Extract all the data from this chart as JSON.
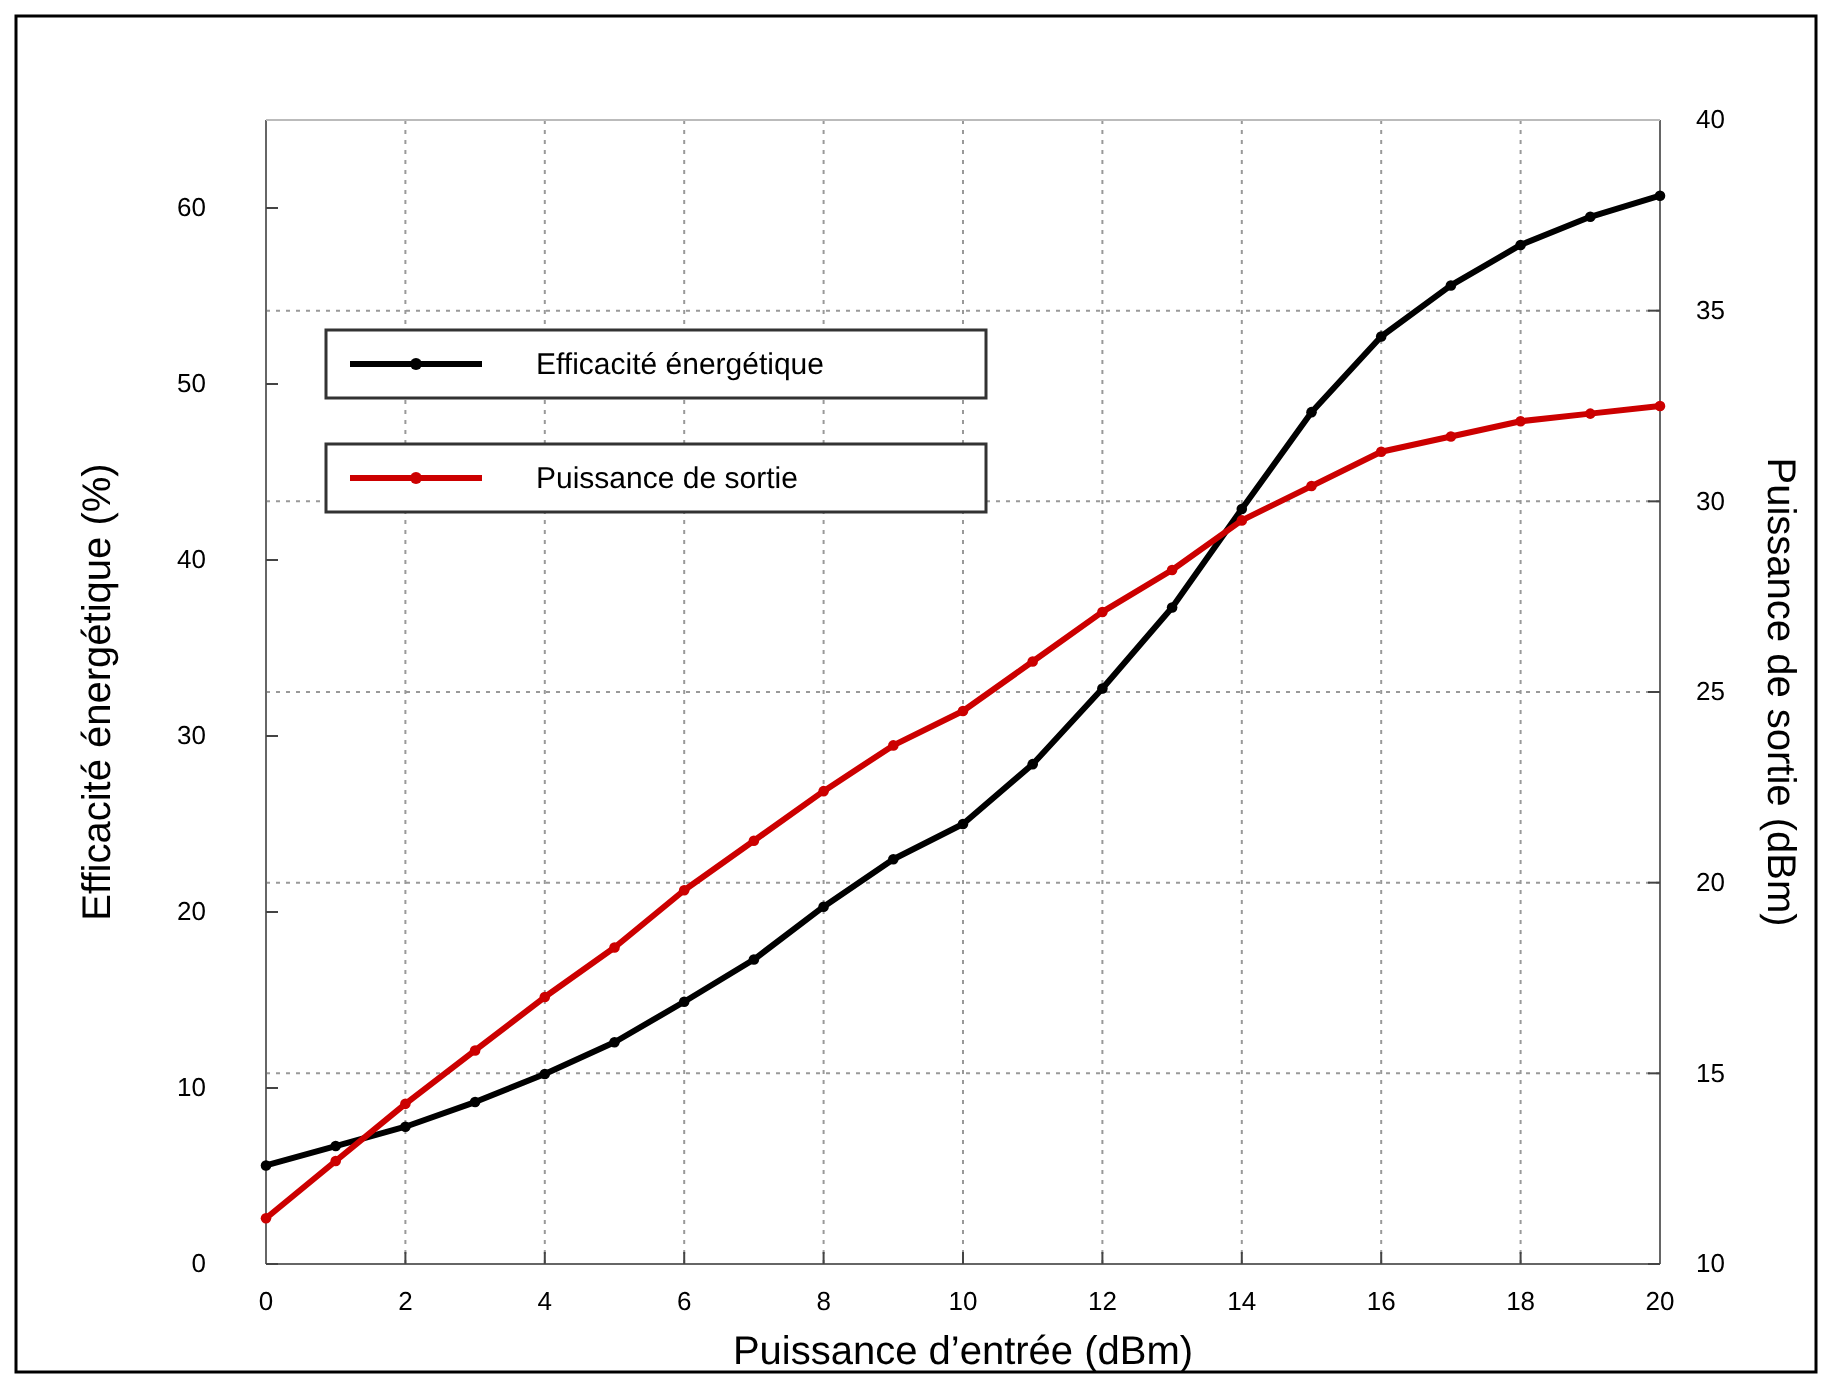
{
  "chart_data": {
    "type": "line",
    "xlabel": "Puissance d’entrée (dBm)",
    "ylabel": "Efficacité énergétique (%)",
    "y2label": "Puissance de sortie (dBm)",
    "x": [
      0,
      1,
      2,
      3,
      4,
      5,
      6,
      7,
      8,
      9,
      10,
      11,
      12,
      13,
      14,
      15,
      16,
      17,
      18,
      19,
      20
    ],
    "series": [
      {
        "name": "Efficacité énergétique",
        "color": "#000000",
        "values": [
          5.6,
          6.7,
          7.8,
          9.2,
          10.8,
          12.6,
          14.9,
          17.3,
          20.3,
          23.0,
          25.0,
          28.4,
          32.7,
          37.3,
          42.9,
          48.4,
          52.7,
          55.6,
          57.9,
          59.5,
          60.7
        ]
      },
      {
        "name": "Puissance de sortie",
        "color": "#cc0000",
        "axis": "y2",
        "values": [
          11.2,
          12.7,
          14.2,
          15.6,
          17.0,
          18.3,
          19.8,
          21.1,
          22.4,
          23.6,
          24.5,
          25.8,
          27.1,
          28.2,
          29.5,
          30.4,
          31.3,
          31.7,
          32.1,
          32.3,
          32.5
        ]
      }
    ],
    "xlim": [
      0,
      20
    ],
    "xticks": [
      0,
      2,
      4,
      6,
      8,
      10,
      12,
      14,
      16,
      18,
      20
    ],
    "ylim": [
      0,
      65
    ],
    "yticks": [
      0,
      10,
      20,
      30,
      40,
      50,
      60
    ],
    "y2lim": [
      10,
      40
    ],
    "y2ticks": [
      10,
      15,
      20,
      25,
      30,
      35,
      40
    ],
    "grid": true,
    "legend": "top left",
    "marker": "circle",
    "line_style": "solid"
  }
}
